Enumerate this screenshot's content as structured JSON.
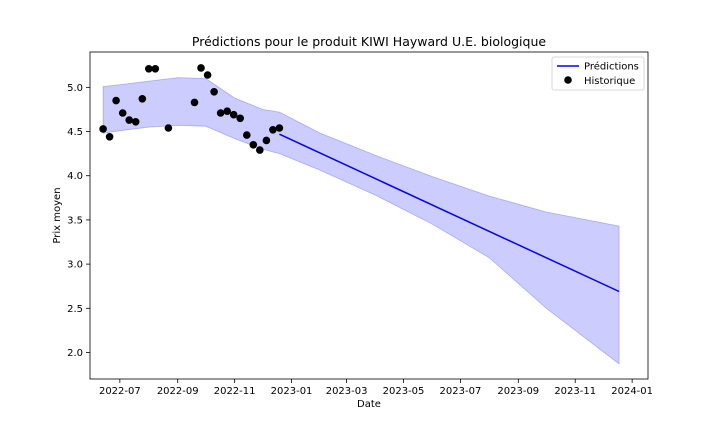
{
  "chart_data": {
    "type": "line",
    "title": "Prédictions pour le produit KIWI Hayward U.E. biologique",
    "xlabel": "Date",
    "ylabel": "Prix moyen",
    "x_type": "date",
    "xlim": [
      "2022-05-30",
      "2024-01-18"
    ],
    "ylim": [
      1.7,
      5.4
    ],
    "x_ticks": [
      {
        "date": "2022-07-01",
        "label": "2022-07"
      },
      {
        "date": "2022-09-01",
        "label": "2022-09"
      },
      {
        "date": "2022-11-01",
        "label": "2022-11"
      },
      {
        "date": "2023-01-01",
        "label": "2023-01"
      },
      {
        "date": "2023-03-01",
        "label": "2023-03"
      },
      {
        "date": "2023-05-01",
        "label": "2023-05"
      },
      {
        "date": "2023-07-01",
        "label": "2023-07"
      },
      {
        "date": "2023-09-01",
        "label": "2023-09"
      },
      {
        "date": "2023-11-01",
        "label": "2023-11"
      },
      {
        "date": "2024-01-01",
        "label": "2024-01"
      }
    ],
    "y_ticks": [
      {
        "value": 2.0,
        "label": "2.0"
      },
      {
        "value": 2.5,
        "label": "2.5"
      },
      {
        "value": 3.0,
        "label": "3.0"
      },
      {
        "value": 3.5,
        "label": "3.5"
      },
      {
        "value": 4.0,
        "label": "4.0"
      },
      {
        "value": 4.5,
        "label": "4.5"
      },
      {
        "value": 5.0,
        "label": "5.0"
      }
    ],
    "grid": false,
    "legend_position": "top-right",
    "series": [
      {
        "name": "Prédictions",
        "kind": "line",
        "color": "#0000ff",
        "x": [
          "2022-12-19",
          "2023-12-18"
        ],
        "y": [
          4.47,
          2.69
        ]
      },
      {
        "name": "Historique",
        "kind": "scatter",
        "color": "#000000",
        "x": [
          "2022-06-13",
          "2022-06-20",
          "2022-06-27",
          "2022-07-04",
          "2022-07-11",
          "2022-07-18",
          "2022-07-25",
          "2022-08-01",
          "2022-08-08",
          "2022-08-22",
          "2022-09-19",
          "2022-09-26",
          "2022-10-03",
          "2022-10-10",
          "2022-10-17",
          "2022-10-24",
          "2022-10-31",
          "2022-11-07",
          "2022-11-14",
          "2022-11-21",
          "2022-11-28",
          "2022-12-05",
          "2022-12-12",
          "2022-12-19"
        ],
        "y": [
          4.53,
          4.44,
          4.85,
          4.71,
          4.63,
          4.61,
          4.87,
          5.21,
          5.21,
          4.54,
          4.83,
          5.22,
          5.14,
          4.95,
          4.71,
          4.73,
          4.69,
          4.65,
          4.46,
          4.35,
          4.29,
          4.4,
          4.52,
          4.54
        ]
      }
    ],
    "confidence_band": {
      "color": "#0000ff",
      "opacity": 0.2,
      "x": [
        "2022-06-13",
        "2022-07-01",
        "2022-08-01",
        "2022-09-01",
        "2022-10-01",
        "2022-11-01",
        "2022-12-01",
        "2022-12-19",
        "2023-02-01",
        "2023-04-01",
        "2023-06-01",
        "2023-08-01",
        "2023-10-01",
        "2023-12-18"
      ],
      "upper": [
        5.01,
        5.03,
        5.07,
        5.11,
        5.1,
        4.88,
        4.75,
        4.72,
        4.48,
        4.23,
        3.99,
        3.77,
        3.59,
        3.43
      ],
      "lower": [
        4.48,
        4.51,
        4.55,
        4.57,
        4.56,
        4.42,
        4.3,
        4.25,
        4.06,
        3.78,
        3.45,
        3.07,
        2.5,
        1.87
      ]
    }
  }
}
